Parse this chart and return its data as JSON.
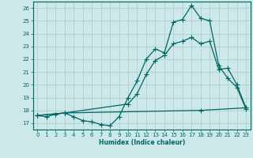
{
  "xlabel": "Humidex (Indice chaleur)",
  "bg_color": "#cce8e8",
  "grid_color": "#aacccc",
  "line_color": "#006666",
  "xlim": [
    -0.5,
    23.5
  ],
  "ylim": [
    16.5,
    26.5
  ],
  "xticks": [
    0,
    1,
    2,
    3,
    4,
    5,
    6,
    7,
    8,
    9,
    10,
    11,
    12,
    13,
    14,
    15,
    16,
    17,
    18,
    19,
    20,
    21,
    22,
    23
  ],
  "yticks": [
    17,
    18,
    19,
    20,
    21,
    22,
    23,
    24,
    25,
    26
  ],
  "line1_x": [
    0,
    1,
    2,
    3,
    4,
    5,
    6,
    7,
    8,
    9,
    10,
    11,
    12,
    13,
    14,
    15,
    16,
    17,
    18,
    19,
    20,
    21,
    22,
    23
  ],
  "line1_y": [
    17.6,
    17.5,
    17.7,
    17.8,
    17.5,
    17.2,
    17.1,
    16.9,
    16.8,
    17.5,
    19.0,
    20.3,
    22.0,
    22.8,
    22.5,
    24.9,
    25.1,
    26.2,
    25.2,
    25.0,
    21.5,
    20.5,
    19.8,
    18.1
  ],
  "line2_x": [
    0,
    3,
    10,
    11,
    12,
    13,
    14,
    15,
    16,
    17,
    18,
    19,
    20,
    21,
    22,
    23
  ],
  "line2_y": [
    17.6,
    17.8,
    18.5,
    19.3,
    20.8,
    21.9,
    22.3,
    23.2,
    23.4,
    23.7,
    23.2,
    23.4,
    21.2,
    21.3,
    20.0,
    18.2
  ],
  "line3_x": [
    0,
    3,
    18,
    23
  ],
  "line3_y": [
    17.6,
    17.8,
    18.0,
    18.2
  ]
}
